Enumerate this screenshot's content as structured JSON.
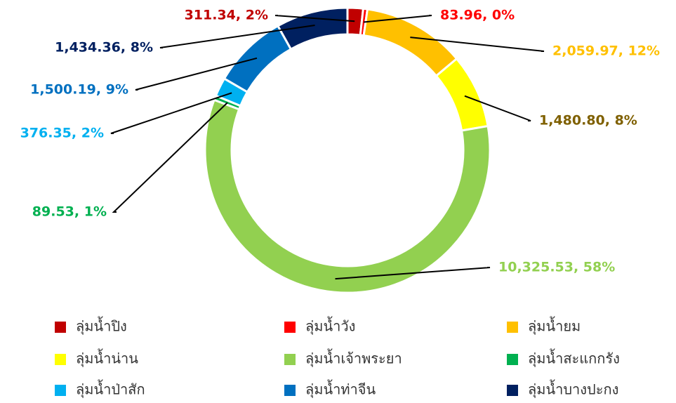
{
  "chart_data": {
    "type": "donut",
    "categories": [
      "ลุ่มน้ำปิง",
      "ลุ่มน้ำวัง",
      "ลุ่มน้ำยม",
      "ลุ่มน้ำน่าน",
      "ลุ่มน้ำเจ้าพระยา",
      "ลุ่มน้ำสะแกกรัง",
      "ลุ่มน้ำป่าสัก",
      "ลุ่มน้ำท่าจีน",
      "ลุ่มน้ำบางปะกง"
    ],
    "values": [
      311.34,
      83.96,
      2059.97,
      1480.8,
      10325.53,
      89.53,
      376.35,
      1500.19,
      1434.36
    ],
    "value_labels": [
      "311.34, 2%",
      "83.96, 0%",
      "2,059.97, 12%",
      "1,480.80, 8%",
      "10,325.53, 58%",
      "89.53, 1%",
      "376.35, 2%",
      "1,500.19, 9%",
      "1,434.36, 8%"
    ],
    "colors": [
      "#c00000",
      "#ff0000",
      "#ffc000",
      "#ffff00",
      "#92d050",
      "#00b050",
      "#00b0f0",
      "#0070c0",
      "#002060"
    ],
    "label_colors": [
      "#c00000",
      "#ff0000",
      "#ffc000",
      "#7f6000",
      "#92d050",
      "#00b050",
      "#00b0f0",
      "#0070c0",
      "#002060"
    ],
    "legend": "bottom"
  }
}
